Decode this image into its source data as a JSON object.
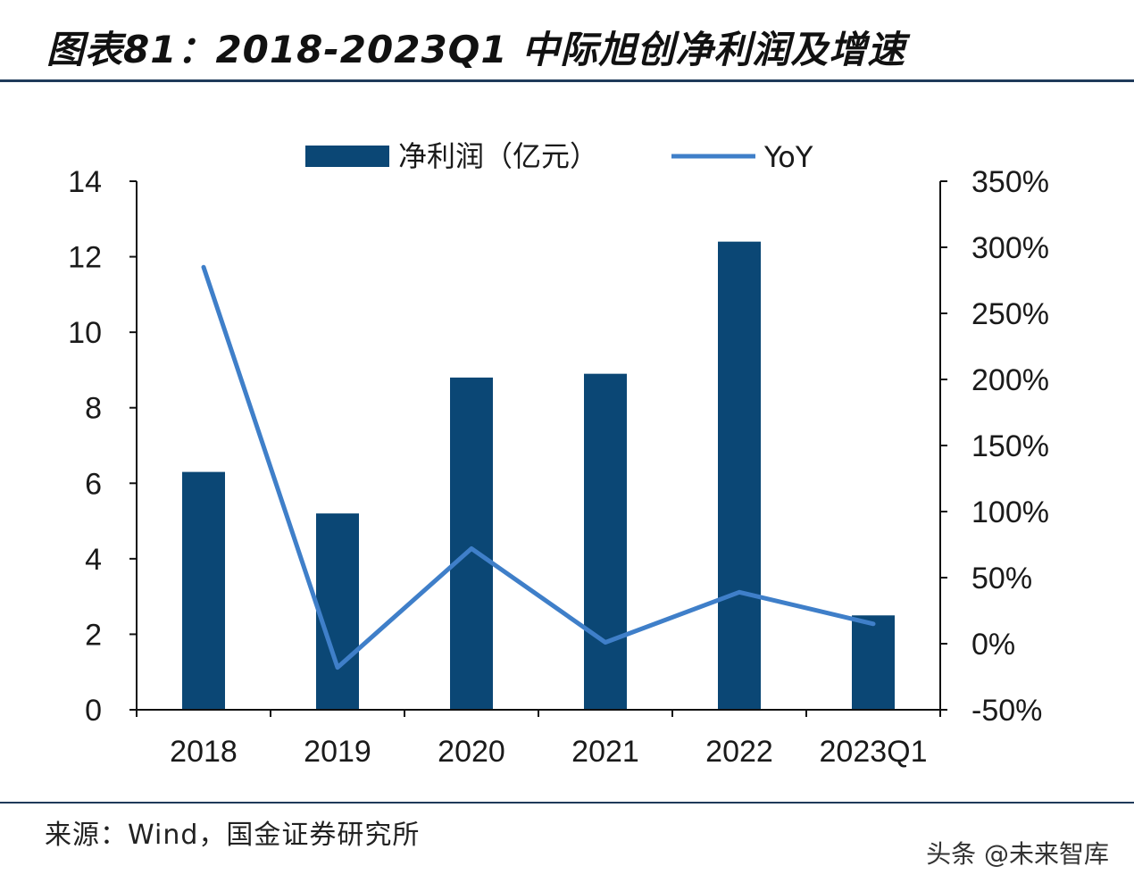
{
  "title": "图表81：2018-2023Q1 中际旭创净利润及增速",
  "source": "来源：Wind，国金证券研究所",
  "watermark": "头条 @未来智库",
  "colors": {
    "bar": "#0b4775",
    "line": "#3f7fc9",
    "rule": "#1f3a5a"
  },
  "chart_data": {
    "type": "bar",
    "categories": [
      "2018",
      "2019",
      "2020",
      "2021",
      "2022",
      "2023Q1"
    ],
    "series": [
      {
        "name": "净利润（亿元）",
        "type": "bar",
        "axis": "left",
        "values": [
          6.3,
          5.2,
          8.8,
          8.9,
          12.4,
          2.5
        ]
      },
      {
        "name": "YoY",
        "type": "line",
        "axis": "right",
        "values": [
          285,
          -18,
          72,
          1,
          39,
          15
        ]
      }
    ],
    "y_left": {
      "min": 0,
      "max": 14,
      "ticks": [
        "0",
        "2",
        "4",
        "6",
        "8",
        "10",
        "12",
        "14"
      ]
    },
    "y_right": {
      "min": -50,
      "max": 350,
      "ticks": [
        "-50%",
        "0%",
        "50%",
        "100%",
        "150%",
        "200%",
        "250%",
        "300%",
        "350%"
      ]
    },
    "legend_position": "top-center",
    "grid": false
  }
}
